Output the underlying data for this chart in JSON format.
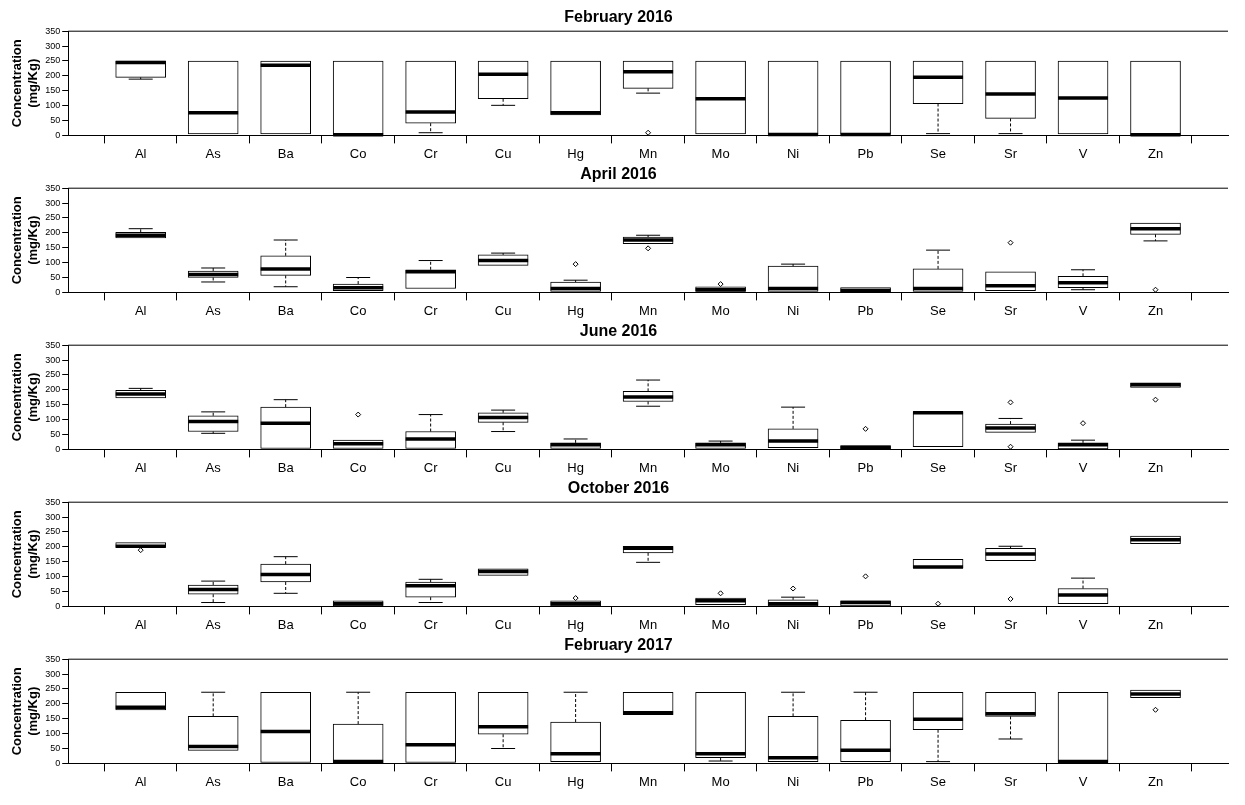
{
  "chart_data": [
    {
      "type": "box",
      "title": "February 2016",
      "ylabel": "Concentration (mg/Kg)",
      "categories": [
        "Al",
        "As",
        "Ba",
        "Co",
        "Cr",
        "Cu",
        "Hg",
        "Mn",
        "Mo",
        "Ni",
        "Pb",
        "Se",
        "Sr",
        "V",
        "Zn"
      ],
      "ylim": [
        0,
        350
      ],
      "yticks": [
        0,
        50,
        100,
        150,
        200,
        250,
        300,
        350
      ],
      "boxes": [
        {
          "low": 189,
          "q1": 195,
          "median": 245,
          "q3": 250,
          "high": 250
        },
        {
          "low": 5,
          "q1": 5,
          "median": 76,
          "q3": 250,
          "high": 250
        },
        {
          "low": 5,
          "q1": 5,
          "median": 236,
          "q3": 250,
          "high": 250
        },
        {
          "low": 2,
          "q1": 2,
          "median": 2,
          "q3": 250,
          "high": 250
        },
        {
          "low": 9,
          "q1": 41,
          "median": 79,
          "q3": 250,
          "high": 250
        },
        {
          "low": 101,
          "q1": 123,
          "median": 205,
          "q3": 250,
          "high": 250
        },
        {
          "low": 69,
          "q1": 69,
          "median": 76,
          "q3": 250,
          "high": 250
        },
        {
          "low": 142,
          "q1": 158,
          "median": 214,
          "q3": 250,
          "high": 250,
          "outliers": [
            9
          ]
        },
        {
          "low": 5,
          "q1": 5,
          "median": 123,
          "q3": 250,
          "high": 250
        },
        {
          "low": 3,
          "q1": 3,
          "median": 3,
          "q3": 250,
          "high": 250
        },
        {
          "low": 3,
          "q1": 3,
          "median": 3,
          "q3": 250,
          "high": 250
        },
        {
          "low": 6,
          "q1": 107,
          "median": 195,
          "q3": 250,
          "high": 250
        },
        {
          "low": 6,
          "q1": 57,
          "median": 139,
          "q3": 250,
          "high": 250
        },
        {
          "low": 5,
          "q1": 5,
          "median": 126,
          "q3": 250,
          "high": 250
        },
        {
          "low": 2,
          "q1": 2,
          "median": 2,
          "q3": 250,
          "high": 250
        }
      ]
    },
    {
      "type": "box",
      "title": "April 2016",
      "ylabel": "Concentration (mg/Kg)",
      "categories": [
        "Al",
        "As",
        "Ba",
        "Co",
        "Cr",
        "Cu",
        "Hg",
        "Mn",
        "Mo",
        "Ni",
        "Pb",
        "Se",
        "Sr",
        "V",
        "Zn"
      ],
      "ylim": [
        0,
        350
      ],
      "yticks": [
        0,
        50,
        100,
        150,
        200,
        250,
        300,
        350
      ],
      "boxes": [
        {
          "low": 183,
          "q1": 183,
          "median": 192,
          "q3": 202,
          "high": 214
        },
        {
          "low": 35,
          "q1": 50,
          "median": 60,
          "q3": 72,
          "high": 82
        },
        {
          "low": 19,
          "q1": 57,
          "median": 79,
          "q3": 123,
          "high": 176
        },
        {
          "low": 6,
          "q1": 6,
          "median": 16,
          "q3": 28,
          "high": 50
        },
        {
          "low": 13,
          "q1": 13,
          "median": 69,
          "q3": 76,
          "high": 107
        },
        {
          "low": 91,
          "q1": 91,
          "median": 107,
          "q3": 126,
          "high": 132
        },
        {
          "low": 3,
          "q1": 3,
          "median": 13,
          "q3": 35,
          "high": 41,
          "outliers": [
            95
          ]
        },
        {
          "low": 164,
          "q1": 164,
          "median": 176,
          "q3": 186,
          "high": 192,
          "outliers": [
            148
          ]
        },
        {
          "low": 3,
          "q1": 3,
          "median": 9,
          "q3": 19,
          "high": 19,
          "outliers": [
            28
          ]
        },
        {
          "low": 3,
          "q1": 3,
          "median": 13,
          "q3": 88,
          "high": 95
        },
        {
          "low": 0,
          "q1": 0,
          "median": 6,
          "q3": 16,
          "high": 16
        },
        {
          "low": 3,
          "q1": 3,
          "median": 13,
          "q3": 79,
          "high": 142
        },
        {
          "low": 6,
          "q1": 6,
          "median": 22,
          "q3": 69,
          "high": 69,
          "outliers": [
            167
          ]
        },
        {
          "low": 9,
          "q1": 16,
          "median": 32,
          "q3": 54,
          "high": 76
        },
        {
          "low": 173,
          "q1": 195,
          "median": 214,
          "q3": 233,
          "high": 233,
          "outliers": [
            9
          ]
        }
      ]
    },
    {
      "type": "box",
      "title": "June 2016",
      "ylabel": "Concentration (mg/Kg)",
      "categories": [
        "Al",
        "As",
        "Ba",
        "Co",
        "Cr",
        "Cu",
        "Hg",
        "Mn",
        "Mo",
        "Ni",
        "Pb",
        "Se",
        "Sr",
        "V",
        "Zn"
      ],
      "ylim": [
        0,
        350
      ],
      "yticks": [
        0,
        50,
        100,
        150,
        200,
        250,
        300,
        350
      ],
      "boxes": [
        {
          "low": 173,
          "q1": 173,
          "median": 186,
          "q3": 198,
          "high": 205
        },
        {
          "low": 54,
          "q1": 60,
          "median": 94,
          "q3": 113,
          "high": 126
        },
        {
          "low": 3,
          "q1": 3,
          "median": 88,
          "q3": 142,
          "high": 167
        },
        {
          "low": 3,
          "q1": 3,
          "median": 19,
          "q3": 31,
          "high": 31,
          "outliers": [
            117
          ]
        },
        {
          "low": 3,
          "q1": 3,
          "median": 35,
          "q3": 60,
          "high": 117
        },
        {
          "low": 60,
          "q1": 91,
          "median": 107,
          "q3": 123,
          "high": 132
        },
        {
          "low": 3,
          "q1": 3,
          "median": 16,
          "q3": 22,
          "high": 35
        },
        {
          "low": 145,
          "q1": 161,
          "median": 176,
          "q3": 195,
          "high": 233
        },
        {
          "low": 3,
          "q1": 3,
          "median": 16,
          "q3": 22,
          "high": 28
        },
        {
          "low": 6,
          "q1": 6,
          "median": 28,
          "q3": 69,
          "high": 142
        },
        {
          "low": 0,
          "q1": 0,
          "median": 6,
          "q3": 13,
          "high": 13,
          "outliers": [
            69
          ]
        },
        {
          "low": 9,
          "q1": 9,
          "median": 123,
          "q3": 126,
          "high": 126
        },
        {
          "low": 57,
          "q1": 57,
          "median": 72,
          "q3": 85,
          "high": 104,
          "outliers": [
            158,
            9
          ]
        },
        {
          "low": 0,
          "q1": 0,
          "median": 16,
          "q3": 22,
          "high": 31,
          "outliers": [
            88
          ]
        },
        {
          "low": 208,
          "q1": 208,
          "median": 217,
          "q3": 224,
          "high": 224,
          "outliers": [
            167
          ]
        }
      ]
    },
    {
      "type": "box",
      "title": "October 2016",
      "ylabel": "Concentration (mg/Kg)",
      "categories": [
        "Al",
        "As",
        "Ba",
        "Co",
        "Cr",
        "Cu",
        "Hg",
        "Mn",
        "Mo",
        "Ni",
        "Pb",
        "Se",
        "Sr",
        "V",
        "Zn"
      ],
      "ylim": [
        0,
        350
      ],
      "yticks": [
        0,
        50,
        100,
        150,
        200,
        250,
        300,
        350
      ],
      "boxes": [
        {
          "low": 198,
          "q1": 198,
          "median": 202,
          "q3": 214,
          "high": 214,
          "outliers": [
            189
          ]
        },
        {
          "low": 13,
          "q1": 41,
          "median": 57,
          "q3": 72,
          "high": 85
        },
        {
          "low": 44,
          "q1": 82,
          "median": 107,
          "q3": 142,
          "high": 167
        },
        {
          "low": 0,
          "q1": 0,
          "median": 9,
          "q3": 19,
          "high": 19
        },
        {
          "low": 13,
          "q1": 31,
          "median": 69,
          "q3": 82,
          "high": 91
        },
        {
          "low": 104,
          "q1": 104,
          "median": 117,
          "q3": 126,
          "high": 126
        },
        {
          "low": 0,
          "q1": 0,
          "median": 9,
          "q3": 19,
          "high": 19,
          "outliers": [
            28
          ]
        },
        {
          "low": 148,
          "q1": 180,
          "median": 195,
          "q3": 202,
          "high": 202
        },
        {
          "low": 6,
          "q1": 6,
          "median": 19,
          "q3": 28,
          "high": 28,
          "outliers": [
            44
          ]
        },
        {
          "low": 0,
          "q1": 0,
          "median": 9,
          "q3": 22,
          "high": 31,
          "outliers": [
            60
          ]
        },
        {
          "low": 0,
          "q1": 0,
          "median": 13,
          "q3": 19,
          "high": 19,
          "outliers": [
            101
          ]
        },
        {
          "low": 129,
          "q1": 129,
          "median": 132,
          "q3": 158,
          "high": 158,
          "outliers": [
            9
          ]
        },
        {
          "low": 154,
          "q1": 154,
          "median": 176,
          "q3": 195,
          "high": 202,
          "outliers": [
            25
          ]
        },
        {
          "low": 9,
          "q1": 9,
          "median": 38,
          "q3": 60,
          "high": 95
        },
        {
          "low": 211,
          "q1": 211,
          "median": 224,
          "q3": 236,
          "high": 236
        }
      ]
    },
    {
      "type": "box",
      "title": "February 2017",
      "ylabel": "Concentration (mg/Kg)",
      "categories": [
        "Al",
        "As",
        "Ba",
        "Co",
        "Cr",
        "Cu",
        "Hg",
        "Mn",
        "Mo",
        "Ni",
        "Pb",
        "Se",
        "Sr",
        "V",
        "Zn"
      ],
      "ylim": [
        0,
        350
      ],
      "yticks": [
        0,
        50,
        100,
        150,
        200,
        250,
        300,
        350
      ],
      "boxes": [
        {
          "low": 180,
          "q1": 180,
          "median": 189,
          "q3": 239,
          "high": 239
        },
        {
          "low": 44,
          "q1": 44,
          "median": 57,
          "q3": 158,
          "high": 239
        },
        {
          "low": 3,
          "q1": 3,
          "median": 107,
          "q3": 239,
          "high": 239
        },
        {
          "low": 0,
          "q1": 0,
          "median": 6,
          "q3": 132,
          "high": 239
        },
        {
          "low": 3,
          "q1": 3,
          "median": 63,
          "q3": 239,
          "high": 239
        },
        {
          "low": 50,
          "q1": 98,
          "median": 123,
          "q3": 239,
          "high": 239
        },
        {
          "low": 6,
          "q1": 6,
          "median": 32,
          "q3": 139,
          "high": 239
        },
        {
          "low": 164,
          "q1": 164,
          "median": 170,
          "q3": 239,
          "high": 239
        },
        {
          "low": 8,
          "q1": 19,
          "median": 32,
          "q3": 239,
          "high": 239
        },
        {
          "low": 6,
          "q1": 6,
          "median": 19,
          "q3": 158,
          "high": 239
        },
        {
          "low": 6,
          "q1": 6,
          "median": 44,
          "q3": 145,
          "high": 239
        },
        {
          "low": 6,
          "q1": 113,
          "median": 148,
          "q3": 239,
          "high": 239
        },
        {
          "low": 82,
          "q1": 158,
          "median": 167,
          "q3": 239,
          "high": 239
        },
        {
          "low": 3,
          "q1": 3,
          "median": 6,
          "q3": 239,
          "high": 239
        },
        {
          "low": 221,
          "q1": 221,
          "median": 233,
          "q3": 246,
          "high": 246,
          "outliers": [
            180
          ]
        }
      ]
    }
  ]
}
